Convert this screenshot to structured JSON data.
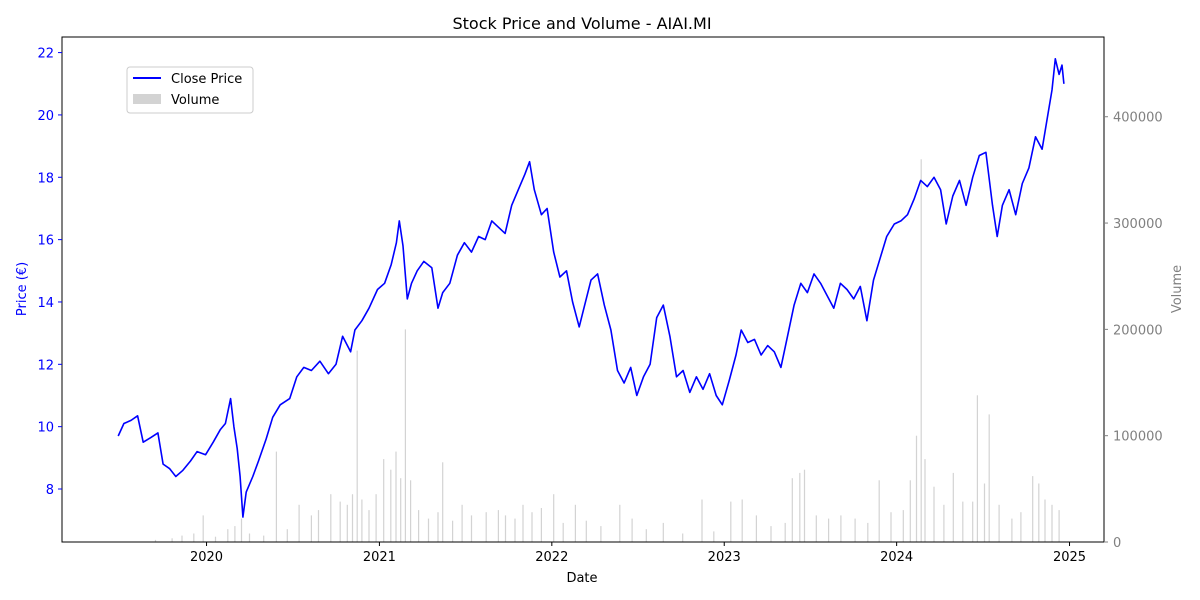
{
  "chart_data": {
    "type": "line",
    "title": "Stock Price and Volume - AIAI.MI",
    "xlabel": "Date",
    "ylabel_left": "Price (€)",
    "ylabel_right": "Volume",
    "x_range": [
      "2019-03-01",
      "2025-03-15"
    ],
    "y_left_range": [
      6.3,
      22.5
    ],
    "y_right_range": [
      0,
      475000
    ],
    "x_ticks": [
      "2020",
      "2021",
      "2022",
      "2023",
      "2024",
      "2025"
    ],
    "y_left_ticks": [
      "8",
      "10",
      "12",
      "14",
      "16",
      "18",
      "20",
      "22"
    ],
    "y_right_ticks": [
      "0",
      "100000",
      "200000",
      "300000",
      "400000"
    ],
    "grid": false,
    "legend_position": "upper-left",
    "colors": {
      "price": "#0000ff",
      "volume": "#d3d3d3",
      "price_axis": "#0000ff",
      "volume_axis": "#808080"
    },
    "series": [
      {
        "name": "Close Price",
        "kind": "line",
        "points": [
          [
            "2019-06-28",
            9.7
          ],
          [
            "2019-07-10",
            10.1
          ],
          [
            "2019-07-25",
            10.2
          ],
          [
            "2019-08-08",
            10.35
          ],
          [
            "2019-08-20",
            9.5
          ],
          [
            "2019-09-05",
            9.65
          ],
          [
            "2019-09-20",
            9.8
          ],
          [
            "2019-10-01",
            8.8
          ],
          [
            "2019-10-15",
            8.65
          ],
          [
            "2019-10-28",
            8.4
          ],
          [
            "2019-11-12",
            8.6
          ],
          [
            "2019-11-28",
            8.9
          ],
          [
            "2019-12-12",
            9.2
          ],
          [
            "2019-12-30",
            9.1
          ],
          [
            "2020-01-15",
            9.5
          ],
          [
            "2020-01-30",
            9.9
          ],
          [
            "2020-02-10",
            10.1
          ],
          [
            "2020-02-21",
            10.9
          ],
          [
            "2020-02-28",
            10.0
          ],
          [
            "2020-03-06",
            9.3
          ],
          [
            "2020-03-12",
            8.4
          ],
          [
            "2020-03-18",
            7.1
          ],
          [
            "2020-03-25",
            7.9
          ],
          [
            "2020-04-08",
            8.4
          ],
          [
            "2020-04-20",
            8.9
          ],
          [
            "2020-05-06",
            9.6
          ],
          [
            "2020-05-20",
            10.3
          ],
          [
            "2020-06-05",
            10.7
          ],
          [
            "2020-06-25",
            10.9
          ],
          [
            "2020-07-10",
            11.6
          ],
          [
            "2020-07-25",
            11.9
          ],
          [
            "2020-08-10",
            11.8
          ],
          [
            "2020-08-28",
            12.1
          ],
          [
            "2020-09-15",
            11.7
          ],
          [
            "2020-10-01",
            12.0
          ],
          [
            "2020-10-15",
            12.9
          ],
          [
            "2020-11-01",
            12.4
          ],
          [
            "2020-11-10",
            13.1
          ],
          [
            "2020-11-25",
            13.4
          ],
          [
            "2020-12-10",
            13.8
          ],
          [
            "2020-12-28",
            14.4
          ],
          [
            "2021-01-12",
            14.6
          ],
          [
            "2021-01-26",
            15.2
          ],
          [
            "2021-02-06",
            15.9
          ],
          [
            "2021-02-12",
            16.6
          ],
          [
            "2021-02-20",
            15.8
          ],
          [
            "2021-03-01",
            14.1
          ],
          [
            "2021-03-10",
            14.6
          ],
          [
            "2021-03-22",
            15.0
          ],
          [
            "2021-04-05",
            15.3
          ],
          [
            "2021-04-22",
            15.1
          ],
          [
            "2021-05-05",
            13.8
          ],
          [
            "2021-05-15",
            14.3
          ],
          [
            "2021-05-30",
            14.6
          ],
          [
            "2021-06-15",
            15.5
          ],
          [
            "2021-06-30",
            15.9
          ],
          [
            "2021-07-15",
            15.6
          ],
          [
            "2021-07-30",
            16.1
          ],
          [
            "2021-08-13",
            16.0
          ],
          [
            "2021-08-27",
            16.6
          ],
          [
            "2021-09-10",
            16.4
          ],
          [
            "2021-09-24",
            16.2
          ],
          [
            "2021-10-08",
            17.1
          ],
          [
            "2021-10-22",
            17.6
          ],
          [
            "2021-11-05",
            18.1
          ],
          [
            "2021-11-15",
            18.5
          ],
          [
            "2021-11-25",
            17.6
          ],
          [
            "2021-12-10",
            16.8
          ],
          [
            "2021-12-22",
            17.0
          ],
          [
            "2022-01-05",
            15.6
          ],
          [
            "2022-01-18",
            14.8
          ],
          [
            "2022-02-01",
            15.0
          ],
          [
            "2022-02-14",
            14.0
          ],
          [
            "2022-02-28",
            13.2
          ],
          [
            "2022-03-10",
            13.8
          ],
          [
            "2022-03-25",
            14.7
          ],
          [
            "2022-04-08",
            14.9
          ],
          [
            "2022-04-22",
            13.9
          ],
          [
            "2022-05-06",
            13.1
          ],
          [
            "2022-05-20",
            11.8
          ],
          [
            "2022-06-03",
            11.4
          ],
          [
            "2022-06-17",
            11.9
          ],
          [
            "2022-06-30",
            11.0
          ],
          [
            "2022-07-14",
            11.6
          ],
          [
            "2022-07-28",
            12.0
          ],
          [
            "2022-08-11",
            13.5
          ],
          [
            "2022-08-25",
            13.9
          ],
          [
            "2022-09-08",
            12.9
          ],
          [
            "2022-09-22",
            11.6
          ],
          [
            "2022-10-06",
            11.8
          ],
          [
            "2022-10-20",
            11.1
          ],
          [
            "2022-11-03",
            11.6
          ],
          [
            "2022-11-17",
            11.2
          ],
          [
            "2022-12-01",
            11.7
          ],
          [
            "2022-12-15",
            11.0
          ],
          [
            "2022-12-28",
            10.7
          ],
          [
            "2023-01-12",
            11.5
          ],
          [
            "2023-01-26",
            12.3
          ],
          [
            "2023-02-06",
            13.1
          ],
          [
            "2023-02-20",
            12.7
          ],
          [
            "2023-03-06",
            12.8
          ],
          [
            "2023-03-20",
            12.3
          ],
          [
            "2023-04-03",
            12.6
          ],
          [
            "2023-04-17",
            12.4
          ],
          [
            "2023-05-01",
            11.9
          ],
          [
            "2023-05-15",
            12.9
          ],
          [
            "2023-05-29",
            13.9
          ],
          [
            "2023-06-12",
            14.6
          ],
          [
            "2023-06-26",
            14.3
          ],
          [
            "2023-07-10",
            14.9
          ],
          [
            "2023-07-24",
            14.6
          ],
          [
            "2023-08-07",
            14.2
          ],
          [
            "2023-08-21",
            13.8
          ],
          [
            "2023-09-04",
            14.6
          ],
          [
            "2023-09-18",
            14.4
          ],
          [
            "2023-10-02",
            14.1
          ],
          [
            "2023-10-16",
            14.5
          ],
          [
            "2023-10-30",
            13.4
          ],
          [
            "2023-11-13",
            14.7
          ],
          [
            "2023-11-27",
            15.4
          ],
          [
            "2023-12-11",
            16.1
          ],
          [
            "2023-12-27",
            16.5
          ],
          [
            "2024-01-10",
            16.6
          ],
          [
            "2024-01-24",
            16.8
          ],
          [
            "2024-02-07",
            17.3
          ],
          [
            "2024-02-21",
            17.9
          ],
          [
            "2024-03-06",
            17.7
          ],
          [
            "2024-03-20",
            18.0
          ],
          [
            "2024-04-03",
            17.6
          ],
          [
            "2024-04-15",
            16.5
          ],
          [
            "2024-04-29",
            17.4
          ],
          [
            "2024-05-13",
            17.9
          ],
          [
            "2024-05-27",
            17.1
          ],
          [
            "2024-06-10",
            18.0
          ],
          [
            "2024-06-24",
            18.7
          ],
          [
            "2024-07-08",
            18.8
          ],
          [
            "2024-07-22",
            17.1
          ],
          [
            "2024-08-01",
            16.1
          ],
          [
            "2024-08-12",
            17.1
          ],
          [
            "2024-08-26",
            17.6
          ],
          [
            "2024-09-09",
            16.8
          ],
          [
            "2024-09-23",
            17.8
          ],
          [
            "2024-10-07",
            18.3
          ],
          [
            "2024-10-21",
            19.3
          ],
          [
            "2024-11-04",
            18.9
          ],
          [
            "2024-11-15",
            19.9
          ],
          [
            "2024-11-25",
            20.8
          ],
          [
            "2024-12-02",
            21.8
          ],
          [
            "2024-12-10",
            21.3
          ],
          [
            "2024-12-16",
            21.6
          ],
          [
            "2024-12-20",
            21.0
          ]
        ]
      },
      {
        "name": "Volume",
        "kind": "bar",
        "points": [
          [
            "2019-09-15",
            2000
          ],
          [
            "2019-10-20",
            3500
          ],
          [
            "2019-11-10",
            6000
          ],
          [
            "2019-12-05",
            8000
          ],
          [
            "2019-12-25",
            25000
          ],
          [
            "2020-01-20",
            5000
          ],
          [
            "2020-02-15",
            12000
          ],
          [
            "2020-03-01",
            15000
          ],
          [
            "2020-03-15",
            22000
          ],
          [
            "2020-04-01",
            8000
          ],
          [
            "2020-05-01",
            6000
          ],
          [
            "2020-05-28",
            85000
          ],
          [
            "2020-06-20",
            12000
          ],
          [
            "2020-07-15",
            35000
          ],
          [
            "2020-08-10",
            25000
          ],
          [
            "2020-08-25",
            30000
          ],
          [
            "2020-09-20",
            45000
          ],
          [
            "2020-10-10",
            38000
          ],
          [
            "2020-10-25",
            35000
          ],
          [
            "2020-11-05",
            45000
          ],
          [
            "2020-11-15",
            180000
          ],
          [
            "2020-11-25",
            40000
          ],
          [
            "2020-12-10",
            30000
          ],
          [
            "2020-12-25",
            45000
          ],
          [
            "2021-01-10",
            78000
          ],
          [
            "2021-01-25",
            68000
          ],
          [
            "2021-02-05",
            85000
          ],
          [
            "2021-02-15",
            60000
          ],
          [
            "2021-02-25",
            200000
          ],
          [
            "2021-03-08",
            58000
          ],
          [
            "2021-03-25",
            30000
          ],
          [
            "2021-04-15",
            22000
          ],
          [
            "2021-05-05",
            28000
          ],
          [
            "2021-05-15",
            75000
          ],
          [
            "2021-06-05",
            20000
          ],
          [
            "2021-06-25",
            35000
          ],
          [
            "2021-07-15",
            25000
          ],
          [
            "2021-08-15",
            28000
          ],
          [
            "2021-09-10",
            30000
          ],
          [
            "2021-09-25",
            25000
          ],
          [
            "2021-10-15",
            22000
          ],
          [
            "2021-11-01",
            35000
          ],
          [
            "2021-11-20",
            28000
          ],
          [
            "2021-12-10",
            32000
          ],
          [
            "2022-01-05",
            45000
          ],
          [
            "2022-01-25",
            18000
          ],
          [
            "2022-02-20",
            35000
          ],
          [
            "2022-03-15",
            20000
          ],
          [
            "2022-04-15",
            15000
          ],
          [
            "2022-05-25",
            35000
          ],
          [
            "2022-06-20",
            22000
          ],
          [
            "2022-07-20",
            12000
          ],
          [
            "2022-08-25",
            18000
          ],
          [
            "2022-10-05",
            8000
          ],
          [
            "2022-11-15",
            40000
          ],
          [
            "2022-12-10",
            10000
          ],
          [
            "2023-01-15",
            38000
          ],
          [
            "2023-02-08",
            40000
          ],
          [
            "2023-03-10",
            25000
          ],
          [
            "2023-04-10",
            15000
          ],
          [
            "2023-05-10",
            18000
          ],
          [
            "2023-05-25",
            60000
          ],
          [
            "2023-06-10",
            65000
          ],
          [
            "2023-06-20",
            68000
          ],
          [
            "2023-07-15",
            25000
          ],
          [
            "2023-08-10",
            22000
          ],
          [
            "2023-09-05",
            25000
          ],
          [
            "2023-10-05",
            22000
          ],
          [
            "2023-11-01",
            18000
          ],
          [
            "2023-11-25",
            58000
          ],
          [
            "2023-12-20",
            28000
          ],
          [
            "2024-01-15",
            30000
          ],
          [
            "2024-01-30",
            58000
          ],
          [
            "2024-02-12",
            100000
          ],
          [
            "2024-02-22",
            360000
          ],
          [
            "2024-03-01",
            78000
          ],
          [
            "2024-03-20",
            52000
          ],
          [
            "2024-04-10",
            35000
          ],
          [
            "2024-04-30",
            65000
          ],
          [
            "2024-05-20",
            38000
          ],
          [
            "2024-06-10",
            38000
          ],
          [
            "2024-06-20",
            138000
          ],
          [
            "2024-07-05",
            55000
          ],
          [
            "2024-07-15",
            120000
          ],
          [
            "2024-08-05",
            35000
          ],
          [
            "2024-09-01",
            22000
          ],
          [
            "2024-09-20",
            28000
          ],
          [
            "2024-10-15",
            62000
          ],
          [
            "2024-10-28",
            55000
          ],
          [
            "2024-11-10",
            40000
          ],
          [
            "2024-11-25",
            35000
          ],
          [
            "2024-12-10",
            30000
          ]
        ]
      }
    ]
  }
}
